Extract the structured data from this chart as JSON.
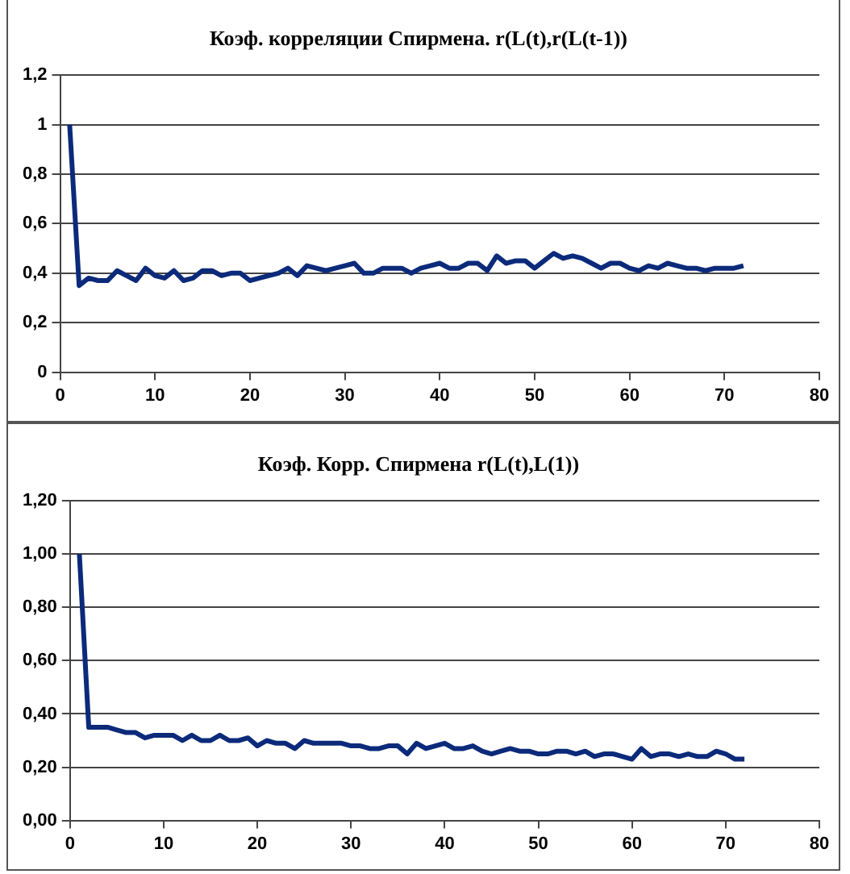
{
  "chart_data": [
    {
      "type": "line",
      "title": "Коэф. корреляции Спирмена. r(L(t),r(L(t-1))",
      "x": [
        1,
        2,
        3,
        4,
        5,
        6,
        7,
        8,
        9,
        10,
        11,
        12,
        13,
        14,
        15,
        16,
        17,
        18,
        19,
        20,
        21,
        22,
        23,
        24,
        25,
        26,
        27,
        28,
        29,
        30,
        31,
        32,
        33,
        34,
        35,
        36,
        37,
        38,
        39,
        40,
        41,
        42,
        43,
        44,
        45,
        46,
        47,
        48,
        49,
        50,
        51,
        52,
        53,
        54,
        55,
        56,
        57,
        58,
        59,
        60,
        61,
        62,
        63,
        64,
        65,
        66,
        67,
        68,
        69,
        70,
        71,
        72
      ],
      "series": [
        {
          "color": "#0b2a7a",
          "values": [
            1.0,
            0.35,
            0.38,
            0.37,
            0.37,
            0.41,
            0.39,
            0.37,
            0.42,
            0.39,
            0.38,
            0.41,
            0.37,
            0.38,
            0.41,
            0.41,
            0.39,
            0.4,
            0.4,
            0.37,
            0.38,
            0.39,
            0.4,
            0.42,
            0.39,
            0.43,
            0.42,
            0.41,
            0.42,
            0.43,
            0.44,
            0.4,
            0.4,
            0.42,
            0.42,
            0.42,
            0.4,
            0.42,
            0.43,
            0.44,
            0.42,
            0.42,
            0.44,
            0.44,
            0.41,
            0.47,
            0.44,
            0.45,
            0.45,
            0.42,
            0.45,
            0.48,
            0.46,
            0.47,
            0.46,
            0.44,
            0.42,
            0.44,
            0.44,
            0.42,
            0.41,
            0.43,
            0.42,
            0.44,
            0.43,
            0.42,
            0.42,
            0.41,
            0.42,
            0.42,
            0.42,
            0.43
          ]
        }
      ],
      "xlim": [
        0,
        80
      ],
      "xticks": [
        0,
        10,
        20,
        30,
        40,
        50,
        60,
        70,
        80
      ],
      "ylim": [
        0,
        1.2
      ],
      "yticks": [
        0,
        {
          "value": 0.2,
          "label": "0,2"
        },
        {
          "value": 0.4,
          "label": "0,4"
        },
        {
          "value": 0.6,
          "label": "0,6"
        },
        {
          "value": 0.8,
          "label": "0,8"
        },
        1,
        {
          "value": 1.2,
          "label": "1,2"
        }
      ],
      "grid": "y",
      "legend": false,
      "marker": "none",
      "line_style": "solid"
    },
    {
      "type": "line",
      "title": "Коэф. Корр. Спирмена r(L(t),L(1))",
      "x": [
        1,
        2,
        3,
        4,
        5,
        6,
        7,
        8,
        9,
        10,
        11,
        12,
        13,
        14,
        15,
        16,
        17,
        18,
        19,
        20,
        21,
        22,
        23,
        24,
        25,
        26,
        27,
        28,
        29,
        30,
        31,
        32,
        33,
        34,
        35,
        36,
        37,
        38,
        39,
        40,
        41,
        42,
        43,
        44,
        45,
        46,
        47,
        48,
        49,
        50,
        51,
        52,
        53,
        54,
        55,
        56,
        57,
        58,
        59,
        60,
        61,
        62,
        63,
        64,
        65,
        66,
        67,
        68,
        69,
        70,
        71,
        72
      ],
      "series": [
        {
          "color": "#0b2a7a",
          "values": [
            1.0,
            0.35,
            0.35,
            0.35,
            0.34,
            0.33,
            0.33,
            0.31,
            0.32,
            0.32,
            0.32,
            0.3,
            0.32,
            0.3,
            0.3,
            0.32,
            0.3,
            0.3,
            0.31,
            0.28,
            0.3,
            0.29,
            0.29,
            0.27,
            0.3,
            0.29,
            0.29,
            0.29,
            0.29,
            0.28,
            0.28,
            0.27,
            0.27,
            0.28,
            0.28,
            0.25,
            0.29,
            0.27,
            0.28,
            0.29,
            0.27,
            0.27,
            0.28,
            0.26,
            0.25,
            0.26,
            0.27,
            0.26,
            0.26,
            0.25,
            0.25,
            0.26,
            0.26,
            0.25,
            0.26,
            0.24,
            0.25,
            0.25,
            0.24,
            0.23,
            0.27,
            0.24,
            0.25,
            0.25,
            0.24,
            0.25,
            0.24,
            0.24,
            0.26,
            0.25,
            0.23,
            0.23
          ]
        }
      ],
      "xlim": [
        0,
        80
      ],
      "xticks": [
        0,
        10,
        20,
        30,
        40,
        50,
        60,
        70,
        80
      ],
      "ylim": [
        0,
        1.2
      ],
      "yticks": [
        {
          "value": 0,
          "label": "0,00"
        },
        {
          "value": 0.2,
          "label": "0,20"
        },
        {
          "value": 0.4,
          "label": "0,40"
        },
        {
          "value": 0.6,
          "label": "0,60"
        },
        {
          "value": 0.8,
          "label": "0,80"
        },
        {
          "value": 1,
          "label": "1,00"
        },
        {
          "value": 1.2,
          "label": "1,20"
        }
      ],
      "grid": "y",
      "legend": false,
      "marker": "none",
      "line_style": "solid"
    }
  ]
}
